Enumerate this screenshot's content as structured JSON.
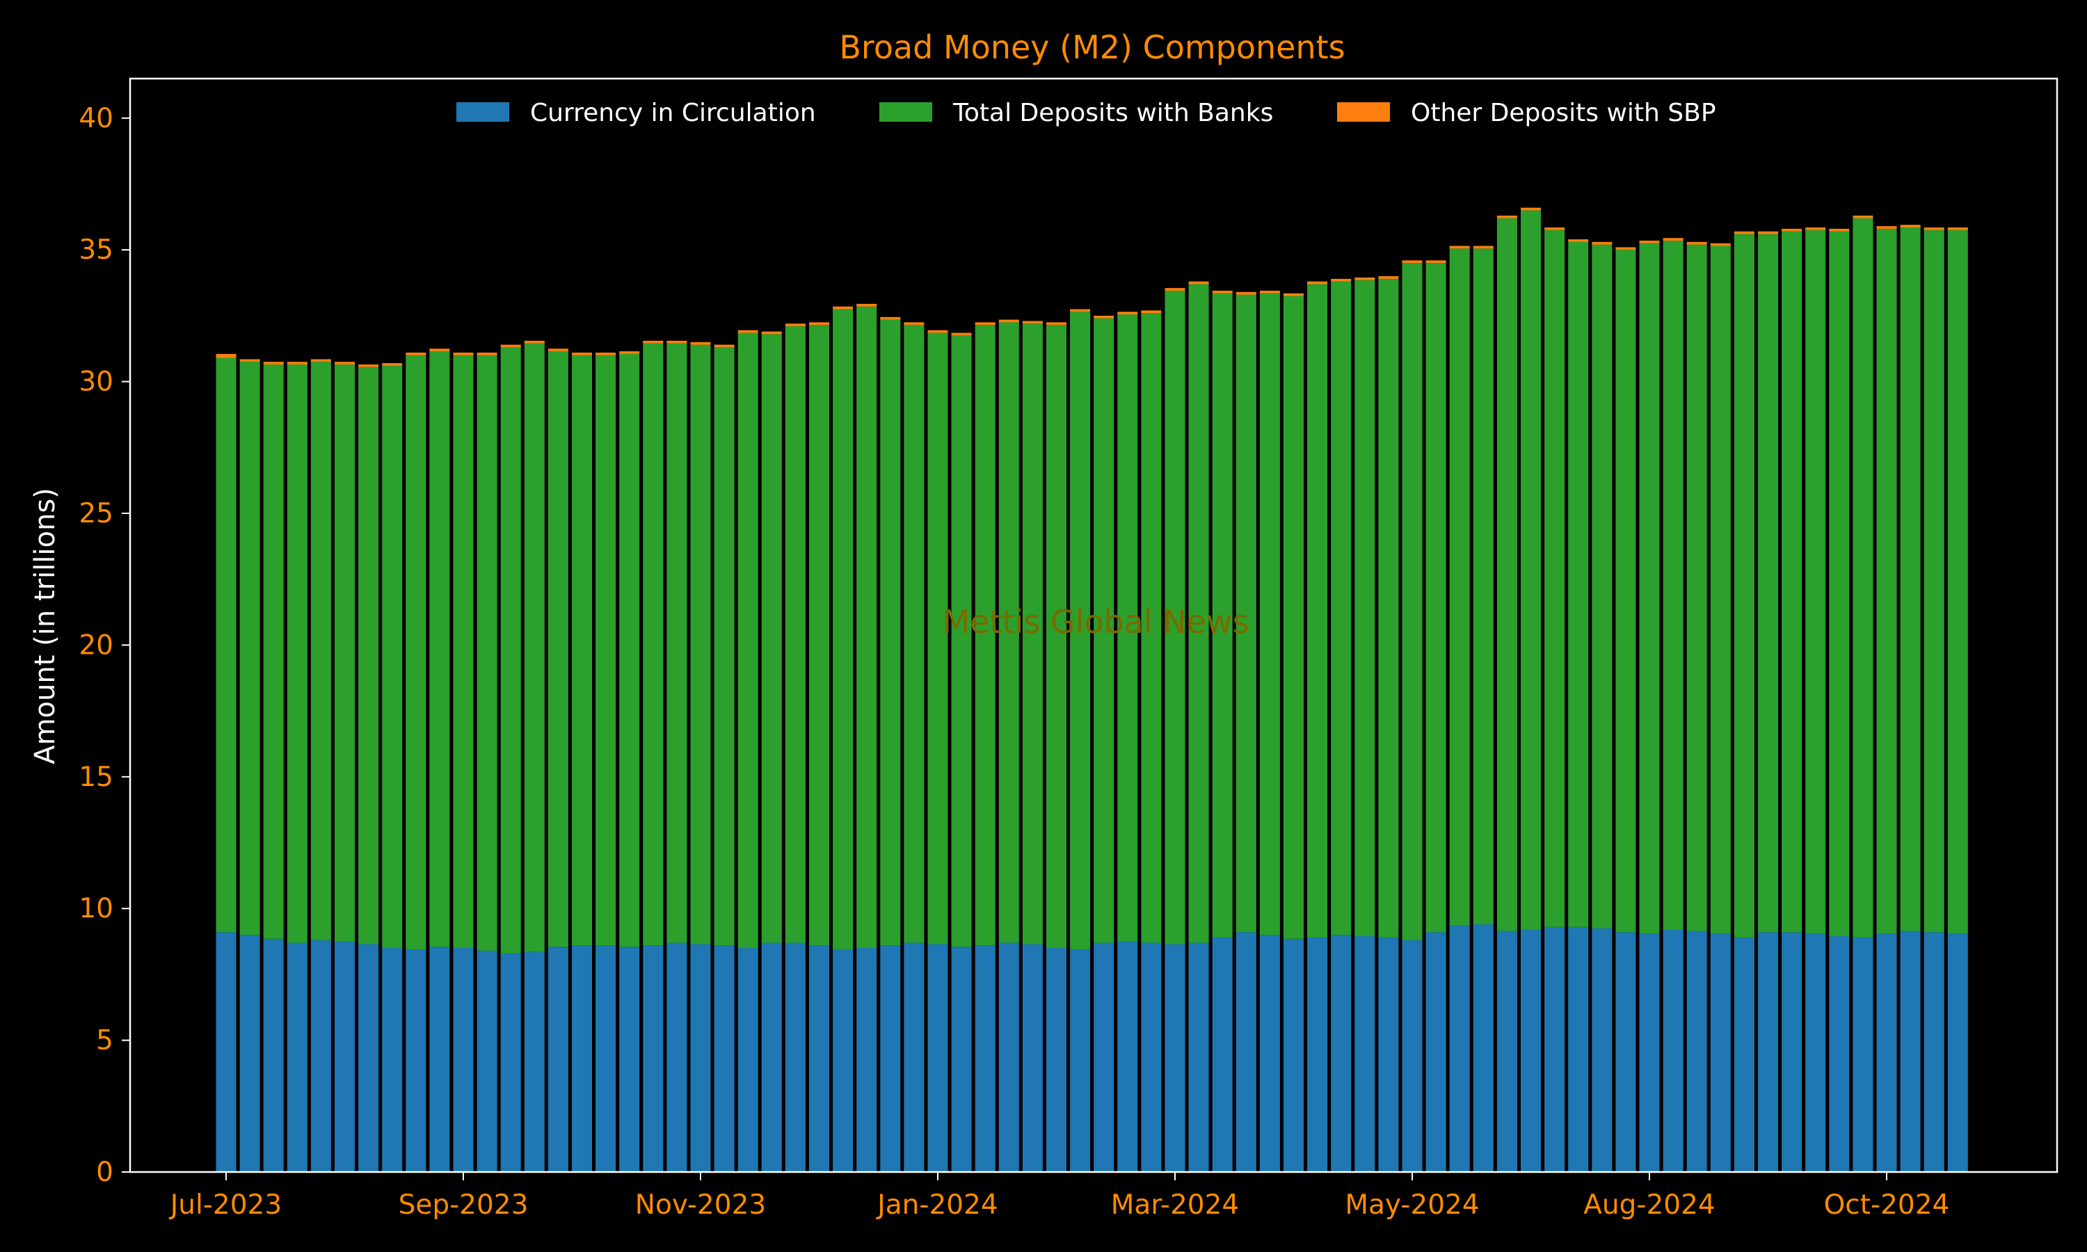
{
  "colors": {
    "background": "#000000",
    "axis": "#ffffff",
    "accent": "#ff8c00",
    "currency": "#1f77b4",
    "deposits": "#2ca02c",
    "other": "#ff7f0e",
    "watermark": "#7a6a00"
  },
  "watermark": "Mettis Global News",
  "chart_data": {
    "type": "bar",
    "stacked": true,
    "title": "Broad Money (M2) Components",
    "xlabel": "",
    "ylabel": "Amount (in trillions)",
    "ylim": [
      0,
      41.5
    ],
    "yticks": [
      0,
      5,
      10,
      15,
      20,
      25,
      30,
      35,
      40
    ],
    "grid": false,
    "legend_position": "top-center",
    "x_ticks": [
      {
        "label": "Jul-2023",
        "index": 0
      },
      {
        "label": "Sep-2023",
        "index": 10
      },
      {
        "label": "Nov-2023",
        "index": 20
      },
      {
        "label": "Jan-2024",
        "index": 30
      },
      {
        "label": "Mar-2024",
        "index": 40
      },
      {
        "label": "May-2024",
        "index": 50
      },
      {
        "label": "Aug-2024",
        "index": 60
      },
      {
        "label": "Oct-2024",
        "index": 70
      }
    ],
    "series": [
      {
        "name": "Currency in Circulation",
        "color": "#1f77b4",
        "values": [
          9.1,
          9.0,
          8.85,
          8.7,
          8.8,
          8.75,
          8.65,
          8.5,
          8.45,
          8.55,
          8.5,
          8.4,
          8.3,
          8.35,
          8.55,
          8.6,
          8.6,
          8.55,
          8.6,
          8.7,
          8.65,
          8.6,
          8.5,
          8.7,
          8.7,
          8.6,
          8.45,
          8.5,
          8.6,
          8.7,
          8.65,
          8.55,
          8.6,
          8.7,
          8.65,
          8.5,
          8.45,
          8.7,
          8.75,
          8.7,
          8.65,
          8.7,
          8.9,
          9.1,
          9.0,
          8.85,
          8.9,
          9.0,
          8.95,
          8.9,
          8.8,
          9.1,
          9.35,
          9.4,
          9.15,
          9.2,
          9.3,
          9.3,
          9.25,
          9.1,
          9.05,
          9.2,
          9.15,
          9.05,
          8.9,
          9.1,
          9.1,
          9.05,
          8.95,
          8.9,
          9.05,
          9.15,
          9.1,
          9.05
        ]
      },
      {
        "name": "Total Deposits with Banks",
        "color": "#2ca02c",
        "values": [
          21.8,
          21.75,
          21.8,
          21.95,
          21.95,
          21.9,
          21.9,
          22.1,
          22.55,
          22.6,
          22.5,
          22.6,
          23.0,
          23.1,
          22.6,
          22.4,
          22.4,
          22.5,
          22.85,
          22.75,
          22.75,
          22.7,
          23.35,
          23.1,
          23.4,
          23.55,
          24.3,
          24.35,
          23.75,
          23.45,
          23.2,
          23.2,
          23.55,
          23.55,
          23.55,
          23.65,
          24.2,
          23.7,
          23.8,
          23.9,
          24.8,
          25.0,
          24.45,
          24.2,
          24.35,
          24.4,
          24.8,
          24.8,
          24.9,
          25.0,
          25.7,
          25.4,
          25.7,
          25.65,
          27.05,
          27.3,
          26.45,
          26.0,
          25.95,
          25.9,
          26.2,
          26.15,
          26.05,
          26.1,
          26.7,
          26.5,
          26.6,
          26.7,
          26.75,
          27.3,
          26.75,
          26.7,
          26.65,
          26.7
        ]
      },
      {
        "name": "Other Deposits with SBP",
        "color": "#ff7f0e",
        "values": [
          0.15,
          0.1,
          0.1,
          0.1,
          0.1,
          0.1,
          0.1,
          0.1,
          0.1,
          0.1,
          0.1,
          0.1,
          0.1,
          0.1,
          0.1,
          0.1,
          0.1,
          0.1,
          0.1,
          0.1,
          0.1,
          0.1,
          0.1,
          0.1,
          0.1,
          0.1,
          0.1,
          0.1,
          0.1,
          0.1,
          0.1,
          0.1,
          0.1,
          0.1,
          0.1,
          0.1,
          0.1,
          0.1,
          0.1,
          0.1,
          0.1,
          0.1,
          0.1,
          0.1,
          0.1,
          0.1,
          0.1,
          0.1,
          0.1,
          0.1,
          0.1,
          0.1,
          0.1,
          0.1,
          0.1,
          0.1,
          0.1,
          0.1,
          0.1,
          0.1,
          0.1,
          0.1,
          0.1,
          0.1,
          0.1,
          0.1,
          0.1,
          0.1,
          0.1,
          0.1,
          0.1,
          0.1,
          0.1,
          0.1
        ]
      }
    ]
  }
}
